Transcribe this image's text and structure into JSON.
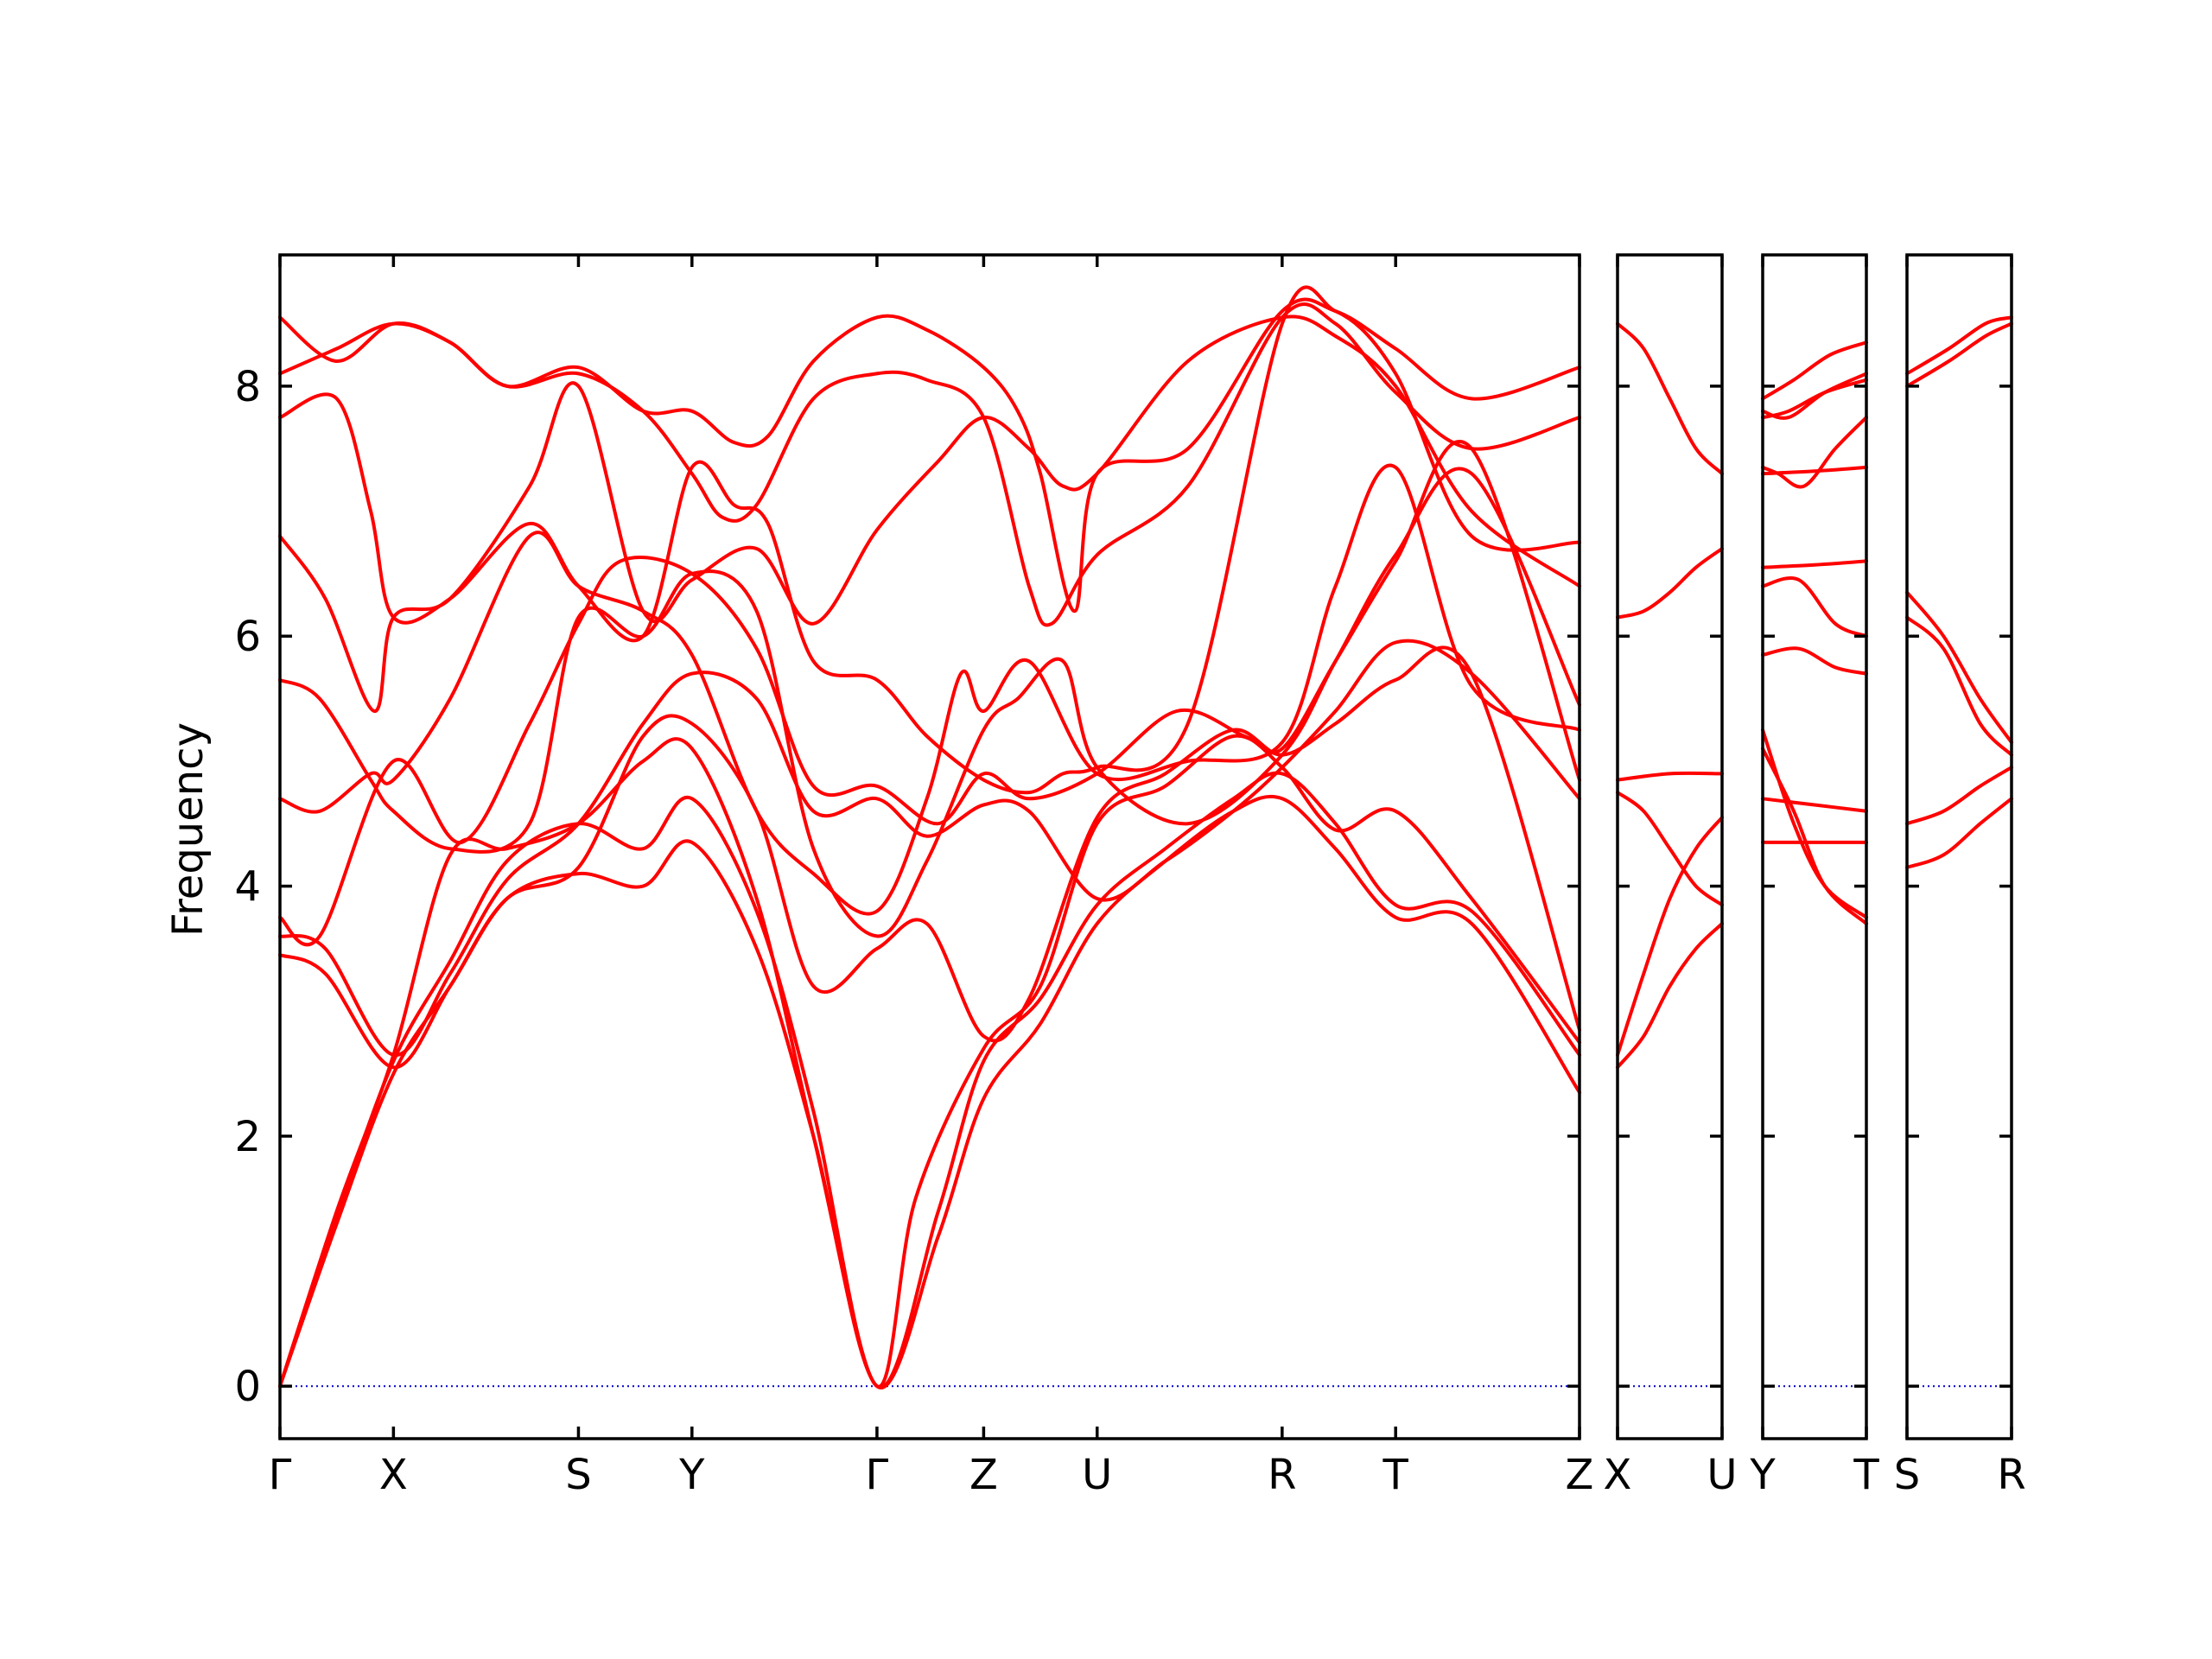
{
  "chart_data": {
    "type": "line",
    "ylabel": "Frequency",
    "xlabel": "",
    "ylim": [
      -0.42,
      9.05
    ],
    "yticks": [
      0,
      2,
      4,
      6,
      8
    ],
    "band_color": "#ff0000",
    "zero_line_color": "#0000cc",
    "panels": [
      {
        "id": "main",
        "xlim": [
          0,
          11.45
        ],
        "labels": [
          {
            "x": 0,
            "text": "Γ"
          },
          {
            "x": 1.0,
            "text": "X"
          },
          {
            "x": 2.63,
            "text": "S"
          },
          {
            "x": 3.63,
            "text": "Y"
          },
          {
            "x": 5.26,
            "text": "Γ"
          },
          {
            "x": 6.2,
            "text": "Z"
          },
          {
            "x": 7.2,
            "text": "U"
          },
          {
            "x": 8.83,
            "text": "R"
          },
          {
            "x": 9.83,
            "text": "T"
          },
          {
            "x": 11.45,
            "text": "Z"
          }
        ],
        "series": [
          {
            "x": [
              0,
              0.5,
              1.0,
              1.5,
              2.0,
              2.63,
              3.2,
              3.63,
              4.2,
              4.7,
              5.26,
              5.8,
              6.2,
              6.7,
              7.2,
              7.8,
              8.4,
              8.83,
              9.3,
              9.83,
              10.5,
              11.45
            ],
            "y": [
              0,
              1.3,
              2.5,
              3.2,
              3.9,
              4.1,
              4.0,
              4.35,
              3.5,
              2.0,
              0,
              1.2,
              2.3,
              2.9,
              3.7,
              4.2,
              4.6,
              4.7,
              4.3,
              3.75,
              3.7,
              2.35
            ]
          },
          {
            "x": [
              0,
              0.5,
              1.0,
              1.5,
              2.0,
              2.63,
              3.2,
              3.63,
              4.2,
              4.7,
              5.26,
              5.8,
              6.2,
              6.7,
              7.2,
              7.8,
              8.4,
              8.83,
              9.3,
              9.83,
              10.5,
              11.45
            ],
            "y": [
              0,
              1.35,
              2.6,
              3.4,
              4.2,
              4.5,
              4.3,
              4.7,
              3.8,
              2.2,
              0,
              1.4,
              2.6,
              3.1,
              3.85,
              4.3,
              4.7,
              4.9,
              4.5,
              3.85,
              3.8,
              2.65
            ]
          },
          {
            "x": [
              0,
              0.5,
              1.0,
              1.5,
              2.0,
              2.63,
              3.2,
              3.63,
              4.2,
              4.7,
              5.26,
              5.6,
              6.2,
              6.7,
              7.2,
              7.8,
              8.4,
              8.83,
              9.3,
              9.83,
              10.5,
              11.45
            ],
            "y": [
              0,
              1.4,
              2.65,
              4.25,
              4.3,
              4.5,
              5.0,
              5.1,
              3.9,
              2.0,
              0,
              1.5,
              2.7,
              3.2,
              4.5,
              4.8,
              5.2,
              4.95,
              4.45,
              4.6,
              3.9,
              2.75
            ]
          },
          {
            "x": [
              0,
              0.4,
              1.0,
              1.5,
              2.0,
              2.63,
              3.2,
              3.63,
              4.2,
              4.7,
              5.26,
              5.7,
              6.2,
              6.6,
              7.2,
              7.8,
              8.4,
              8.83,
              9.3,
              9.83,
              10.5,
              11.45
            ],
            "y": [
              3.45,
              3.3,
              2.55,
              3.2,
              3.9,
              4.15,
              5.2,
              5.3,
              4.6,
              3.2,
              3.5,
              3.7,
              2.8,
              3.1,
              4.55,
              4.9,
              5.25,
              5.05,
              5.3,
              5.65,
              5.7,
              2.85
            ]
          },
          {
            "x": [
              0,
              0.4,
              1.0,
              1.5,
              2.0,
              2.63,
              3.2,
              3.63,
              4.2,
              4.7,
              5.26,
              5.7,
              6.2,
              6.6,
              7.2,
              7.8,
              8.4,
              8.83,
              9.3,
              9.83,
              10.5,
              11.45
            ],
            "y": [
              3.6,
              3.5,
              2.65,
              3.3,
              4.05,
              4.5,
              5.3,
              5.7,
              5.5,
              4.6,
              4.7,
              4.4,
              4.65,
              4.6,
              3.9,
              4.2,
              4.6,
              4.95,
              5.4,
              5.95,
              5.7,
              4.7
            ]
          },
          {
            "x": [
              0,
              0.35,
              1.0,
              1.6,
              2.2,
              2.63,
              3.0,
              3.63,
              4.2,
              4.7,
              5.26,
              5.8,
              6.2,
              6.6,
              7.2,
              7.9,
              8.5,
              8.83,
              9.3,
              9.83,
              10.5,
              11.45
            ],
            "y": [
              3.75,
              3.6,
              5.0,
              4.35,
              5.3,
              6.1,
              6.6,
              6.5,
              5.9,
              4.8,
              4.8,
              4.5,
              4.9,
              4.7,
              4.9,
              5.4,
              5.2,
              5.1,
              5.8,
              6.6,
              7.5,
              4.85
            ]
          },
          {
            "x": [
              0,
              0.35,
              0.8,
              1.0,
              1.5,
              2.2,
              2.63,
              3.2,
              3.63,
              4.2,
              4.7,
              5.26,
              5.7,
              6.0,
              6.2,
              6.6,
              7.2,
              8.0,
              8.83,
              9.3,
              9.83,
              10.5,
              11.45
            ],
            "y": [
              4.7,
              4.6,
              4.9,
              4.85,
              5.5,
              6.8,
              6.4,
              6.2,
              5.85,
              4.6,
              4.1,
              3.8,
              4.7,
              5.7,
              5.4,
              5.8,
              4.9,
              5.0,
              5.15,
              6.4,
              7.35,
              5.6,
              5.25
            ]
          },
          {
            "x": [
              0,
              0.35,
              0.8,
              1.0,
              1.5,
              2.2,
              2.63,
              3.2,
              3.63,
              4.2,
              4.7,
              5.26,
              5.7,
              6.2,
              6.5,
              6.9,
              7.2,
              8.0,
              8.83,
              9.3,
              9.83,
              10.5,
              11.45
            ],
            "y": [
              5.65,
              5.5,
              4.85,
              4.6,
              4.3,
              4.5,
              6.15,
              6.0,
              6.5,
              6.2,
              4.3,
              3.6,
              4.2,
              5.25,
              5.5,
              5.8,
              4.95,
              4.5,
              5.05,
              5.8,
              6.65,
              7.3,
              5.45
            ]
          },
          {
            "x": [
              0,
              0.4,
              0.83,
              1.0,
              1.5,
              2.2,
              2.63,
              3.2,
              3.63,
              4.2,
              4.7,
              5.26,
              5.8,
              6.2,
              6.6,
              6.9,
              7.2,
              8.0,
              8.83,
              9.3,
              9.83,
              10.5,
              11.45
            ],
            "y": [
              6.8,
              6.3,
              5.4,
              6.15,
              6.3,
              7.2,
              8.0,
              6.2,
              6.45,
              6.7,
              6.1,
              6.85,
              7.4,
              7.75,
              7.5,
              7.2,
              7.3,
              8.2,
              8.55,
              8.4,
              8.0,
              7.0,
              6.4
            ]
          },
          {
            "x": [
              0,
              0.5,
              0.8,
              1.0,
              1.5,
              2.2,
              2.63,
              3.2,
              3.63,
              4.0,
              4.3,
              4.7,
              5.26,
              5.7,
              6.2,
              6.6,
              6.9,
              7.2,
              8.0,
              8.83,
              9.3,
              9.83,
              10.5,
              11.45
            ],
            "y": [
              7.75,
              7.9,
              7.0,
              6.15,
              6.3,
              6.9,
              6.4,
              6.0,
              7.35,
              7.05,
              6.9,
              5.8,
              5.65,
              5.2,
              4.85,
              4.75,
              4.9,
              4.95,
              5.3,
              8.5,
              8.6,
              8.1,
              6.8,
              6.75
            ]
          },
          {
            "x": [
              0,
              0.5,
              1.0,
              1.5,
              2.0,
              2.63,
              3.2,
              3.63,
              3.9,
              4.2,
              4.7,
              5.26,
              5.7,
              6.2,
              6.6,
              6.8,
              7.2,
              8.0,
              8.83,
              9.3,
              9.83,
              10.5,
              11.45
            ],
            "y": [
              8.1,
              8.3,
              8.5,
              8.35,
              8.0,
              8.1,
              7.8,
              7.3,
              6.95,
              7.05,
              7.9,
              8.1,
              8.05,
              7.75,
              6.4,
              6.1,
              6.65,
              7.2,
              8.55,
              8.5,
              7.95,
              7.5,
              7.75
            ]
          },
          {
            "x": [
              0,
              0.5,
              1.0,
              1.5,
              2.0,
              2.63,
              3.2,
              3.63,
              4.0,
              4.3,
              4.7,
              5.26,
              5.7,
              6.2,
              6.5,
              6.7,
              7.0,
              7.2,
              8.0,
              8.83,
              9.3,
              9.83,
              10.5,
              11.45
            ],
            "y": [
              8.55,
              8.2,
              8.5,
              8.35,
              8.0,
              8.15,
              7.8,
              7.8,
              7.55,
              7.6,
              8.2,
              8.55,
              8.45,
              8.15,
              7.8,
              7.3,
              6.2,
              7.3,
              7.5,
              8.6,
              8.6,
              8.3,
              7.9,
              8.15
            ]
          }
        ]
      },
      {
        "id": "p2",
        "xlim": [
          0,
          1
        ],
        "labels": [
          {
            "x": 0,
            "text": "X"
          },
          {
            "x": 1,
            "text": "U"
          }
        ],
        "series": [
          {
            "x": [
              0,
              0.25,
              0.5,
              0.75,
              1
            ],
            "y": [
              2.55,
              2.8,
              3.2,
              3.5,
              3.7
            ]
          },
          {
            "x": [
              0,
              0.25,
              0.5,
              0.75,
              1
            ],
            "y": [
              2.65,
              3.3,
              3.9,
              4.3,
              4.55
            ]
          },
          {
            "x": [
              0,
              0.25,
              0.5,
              0.75,
              1
            ],
            "y": [
              4.75,
              4.6,
              4.3,
              4.0,
              3.85
            ]
          },
          {
            "x": [
              0,
              0.5,
              1
            ],
            "y": [
              4.85,
              4.9,
              4.9
            ]
          },
          {
            "x": [
              0,
              0.25,
              0.5,
              0.75,
              1
            ],
            "y": [
              6.15,
              6.2,
              6.35,
              6.55,
              6.7
            ]
          },
          {
            "x": [
              0,
              0.25,
              0.5,
              0.75,
              1
            ],
            "y": [
              8.5,
              8.3,
              7.9,
              7.5,
              7.3
            ]
          }
        ]
      },
      {
        "id": "p3",
        "xlim": [
          0,
          1
        ],
        "labels": [
          {
            "x": 0,
            "text": "Y"
          },
          {
            "x": 1,
            "text": "T"
          }
        ],
        "series": [
          {
            "x": [
              0,
              0.5,
              1
            ],
            "y": [
              4.35,
              4.35,
              4.35
            ]
          },
          {
            "x": [
              0,
              0.5,
              1
            ],
            "y": [
              4.7,
              4.65,
              4.6
            ]
          },
          {
            "x": [
              0,
              0.3,
              0.6,
              1
            ],
            "y": [
              5.1,
              4.6,
              4.0,
              3.7
            ]
          },
          {
            "x": [
              0,
              0.3,
              0.6,
              1
            ],
            "y": [
              5.25,
              4.5,
              4.0,
              3.75
            ]
          },
          {
            "x": [
              0,
              0.35,
              0.7,
              1
            ],
            "y": [
              5.85,
              5.9,
              5.75,
              5.7
            ]
          },
          {
            "x": [
              0,
              0.35,
              0.7,
              1
            ],
            "y": [
              6.4,
              6.45,
              6.1,
              6.0
            ]
          },
          {
            "x": [
              0,
              0.5,
              1
            ],
            "y": [
              6.55,
              6.57,
              6.6
            ]
          },
          {
            "x": [
              0,
              0.5,
              1
            ],
            "y": [
              7.3,
              7.32,
              7.35
            ]
          },
          {
            "x": [
              0,
              0.15,
              0.4,
              0.7,
              1
            ],
            "y": [
              7.35,
              7.3,
              7.2,
              7.5,
              7.75
            ]
          },
          {
            "x": [
              0,
              0.25,
              0.6,
              1
            ],
            "y": [
              7.75,
              7.8,
              7.95,
              8.05
            ]
          },
          {
            "x": [
              0,
              0.25,
              0.6,
              1
            ],
            "y": [
              7.8,
              7.75,
              7.95,
              8.1
            ]
          },
          {
            "x": [
              0,
              0.3,
              0.65,
              1
            ],
            "y": [
              7.9,
              8.05,
              8.25,
              8.35
            ]
          }
        ]
      },
      {
        "id": "p4",
        "xlim": [
          0,
          1
        ],
        "labels": [
          {
            "x": 0,
            "text": "S"
          },
          {
            "x": 1,
            "text": "R"
          }
        ],
        "series": [
          {
            "x": [
              0,
              0.35,
              0.7,
              1
            ],
            "y": [
              4.15,
              4.25,
              4.5,
              4.7
            ]
          },
          {
            "x": [
              0,
              0.35,
              0.7,
              1
            ],
            "y": [
              4.5,
              4.6,
              4.8,
              4.95
            ]
          },
          {
            "x": [
              0,
              0.35,
              0.7,
              1
            ],
            "y": [
              6.15,
              5.9,
              5.3,
              5.05
            ]
          },
          {
            "x": [
              0,
              0.35,
              0.7,
              1
            ],
            "y": [
              6.35,
              6.0,
              5.5,
              5.15
            ]
          },
          {
            "x": [
              0,
              0.4,
              0.75,
              1
            ],
            "y": [
              8.0,
              8.2,
              8.4,
              8.5
            ]
          },
          {
            "x": [
              0,
              0.4,
              0.75,
              1
            ],
            "y": [
              8.1,
              8.3,
              8.5,
              8.55
            ]
          }
        ]
      }
    ]
  }
}
